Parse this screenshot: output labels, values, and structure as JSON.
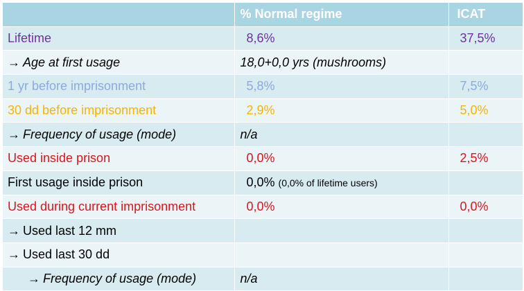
{
  "header": {
    "col_label": "",
    "col_normal": "% Normal regime",
    "col_icat": "ICAT"
  },
  "arrow_glyph": "→",
  "rows": [
    {
      "label": "Lifetime",
      "normal": "8,6%",
      "icat": "37,5%",
      "color": "#7030a0"
    },
    {
      "label": "Age at first usage",
      "normal": "18,0+0,0 yrs (mushrooms)",
      "icat": "",
      "color": "#000000"
    },
    {
      "label": "1 yr before imprisonment",
      "normal": "5,8%",
      "icat": "7,5%",
      "color": "#8ea9db"
    },
    {
      "label": "30 dd before imprisonment",
      "normal": "2,9%",
      "icat": "5,0%",
      "color": "#f5b400"
    },
    {
      "label": "Frequency of usage (mode)",
      "normal": "n/a",
      "icat": "",
      "color": "#000000"
    },
    {
      "label": "Used inside prison",
      "normal": "0,0%",
      "icat": "2,5%",
      "color": "#d9151b"
    },
    {
      "label": "First usage inside prison",
      "normal": "0,0%",
      "normal_note": "(0,0% of lifetime users)",
      "icat": "",
      "color": "#000000"
    },
    {
      "label": "Used during current imprisonment",
      "normal": "0,0%",
      "icat": "0,0%",
      "color": "#d9151b"
    },
    {
      "label": "Used last 12 mm",
      "normal": "",
      "icat": "",
      "color": "#000000"
    },
    {
      "label": "Used last 30 dd",
      "normal": "",
      "icat": "",
      "color": "#000000"
    },
    {
      "label": "Frequency of usage (mode)",
      "normal": "n/a",
      "icat": "",
      "color": "#000000"
    }
  ]
}
